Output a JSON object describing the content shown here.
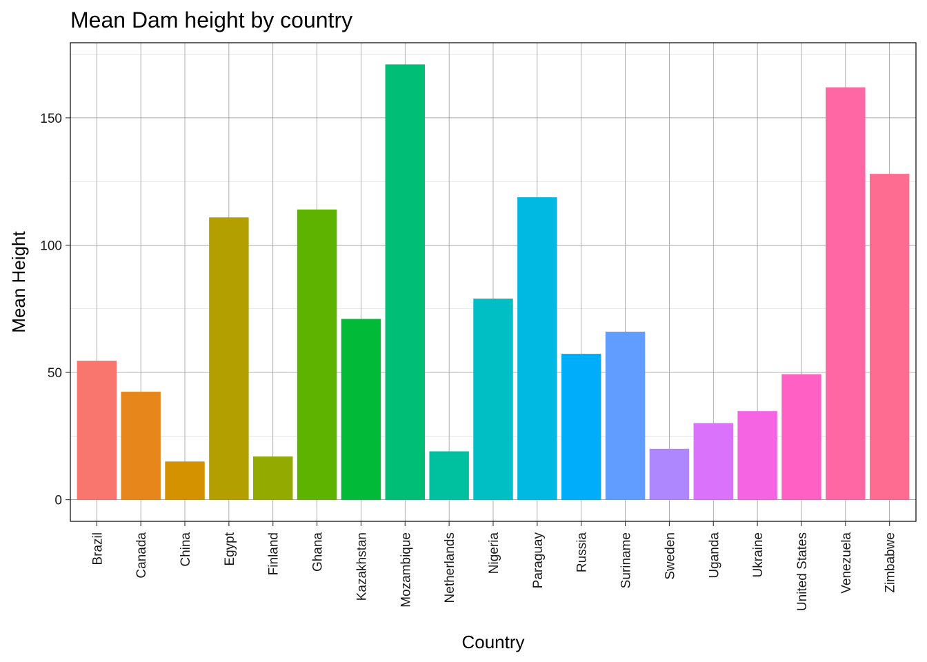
{
  "chart_data": {
    "type": "bar",
    "title": "Mean Dam height by country",
    "xlabel": "Country",
    "ylabel": "Mean Height",
    "ylim": [
      -8.5,
      179.5
    ],
    "yticks": [
      0,
      50,
      100,
      150
    ],
    "grid": true,
    "legend": "none",
    "categories": [
      "Brazil",
      "Canada",
      "China",
      "Egypt",
      "Finland",
      "Ghana",
      "Kazakhstan",
      "Mozambique",
      "Netherlands",
      "Nigeria",
      "Paraguay",
      "Russia",
      "Suriname",
      "Sweden",
      "Uganda",
      "Ukraine",
      "United States",
      "Venezuela",
      "Zimbabwe"
    ],
    "values": [
      54.6,
      42.4,
      15,
      110.9,
      17,
      114,
      71,
      171,
      19,
      79,
      118.8,
      57.3,
      66,
      20,
      30.1,
      34.8,
      49.3,
      162,
      128
    ],
    "colors": [
      "#F8766D",
      "#E7861B",
      "#D49200",
      "#B49F00",
      "#93AA00",
      "#5EB300",
      "#00BA38",
      "#00BF74",
      "#00C19F",
      "#00BFC4",
      "#00B9E3",
      "#00ADFA",
      "#619CFF",
      "#AE87FF",
      "#DB72FB",
      "#F564E3",
      "#FF61C3",
      "#FF67A4",
      "#FF6C91"
    ]
  }
}
